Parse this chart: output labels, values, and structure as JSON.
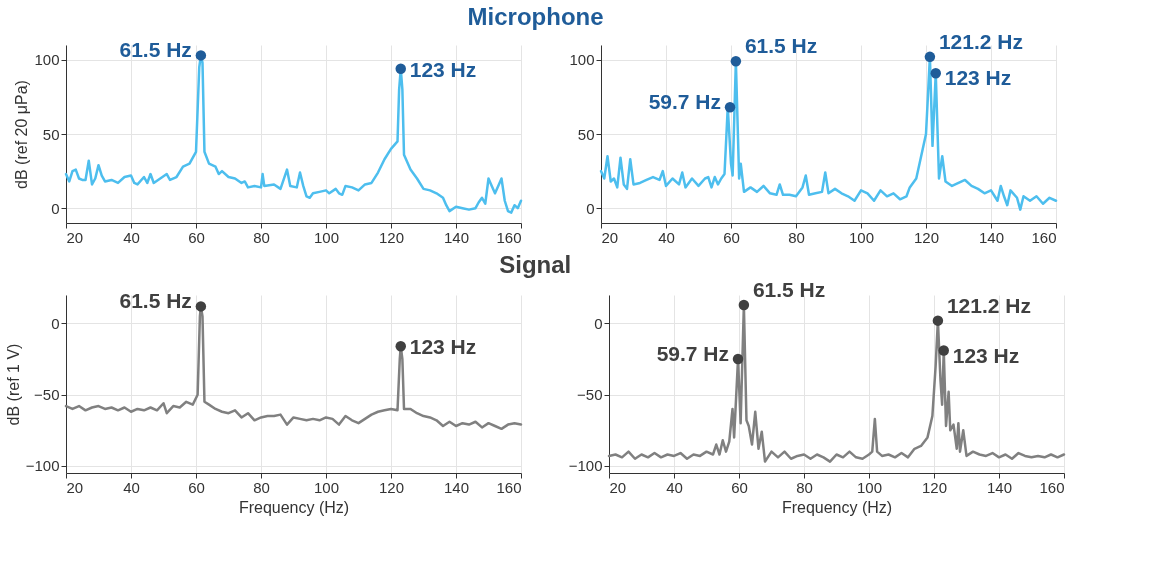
{
  "chart_data": [
    {
      "type": "line",
      "title": "Microphone",
      "ylabel": "dB (ref 20 μPa)",
      "xlim": [
        20,
        160
      ],
      "xticks": [
        20,
        40,
        60,
        80,
        100,
        120,
        140,
        160
      ],
      "ylim": [
        -10,
        110
      ],
      "yticks": [
        0,
        50,
        100
      ],
      "grid": true,
      "marker": "circle",
      "line_style": "solid",
      "series": [
        {
          "marker": "none",
          "color": "#4dbeee",
          "x": [
            20,
            21,
            22,
            23,
            24,
            25,
            26,
            27,
            28,
            29,
            30,
            31,
            32,
            34,
            36,
            38,
            40,
            41,
            42,
            44,
            45,
            46,
            47,
            49,
            51,
            52,
            54,
            56,
            58,
            60,
            61,
            61.5,
            62,
            62.6,
            64,
            66,
            67,
            68,
            70,
            72,
            74,
            75,
            76,
            78,
            80,
            80.5,
            81,
            84,
            86,
            88,
            89,
            91,
            92,
            93,
            94,
            95,
            96,
            98,
            100,
            101,
            103,
            104,
            105,
            106,
            108,
            110,
            112,
            114,
            116,
            118,
            120,
            122,
            122.5,
            123,
            123.5,
            124,
            126,
            128,
            130,
            132,
            134,
            136,
            137,
            138,
            140,
            142,
            144,
            146,
            147,
            148,
            149,
            150,
            151,
            152,
            153,
            154,
            155,
            156,
            157,
            158,
            159,
            160
          ],
          "values": [
            23,
            18,
            25,
            26,
            20,
            19,
            19,
            32,
            16,
            20,
            29,
            22,
            18,
            19,
            17,
            21,
            22,
            17,
            16,
            21,
            17,
            23,
            17,
            20,
            23,
            19,
            21,
            28,
            30,
            38,
            95,
            103,
            98,
            38,
            30,
            28,
            23,
            25,
            21,
            20,
            17,
            18,
            14,
            15,
            14,
            23,
            15,
            16,
            13,
            26,
            15,
            14,
            24,
            15,
            8,
            7,
            10,
            11,
            12,
            10,
            13,
            10,
            9,
            15,
            14,
            12,
            16,
            17,
            24,
            33,
            40,
            45,
            80,
            94,
            80,
            36,
            26,
            20,
            13,
            12,
            10,
            7,
            2,
            -2,
            1,
            0,
            -1,
            0,
            4,
            7,
            3,
            20,
            15,
            10,
            15,
            20,
            5,
            -2,
            -3,
            2,
            0,
            5
          ]
        },
        {
          "type": "scatter",
          "color": "#1f5c99",
          "x": [
            61.5,
            123
          ],
          "values": [
            103,
            94
          ]
        }
      ],
      "annotations": [
        {
          "text": "61.5 Hz",
          "x": 61.5,
          "y": 103
        },
        {
          "text": "123 Hz",
          "x": 123,
          "y": 94
        }
      ]
    },
    {
      "type": "line",
      "xlim": [
        20,
        160
      ],
      "xticks": [
        20,
        40,
        60,
        80,
        100,
        120,
        140,
        160
      ],
      "ylim": [
        -10,
        110
      ],
      "yticks": [
        0,
        50,
        100
      ],
      "grid": true,
      "marker": "circle",
      "line_style": "solid",
      "series": [
        {
          "marker": "none",
          "color": "#4dbeee",
          "x": [
            20,
            21,
            22,
            23,
            24,
            25,
            26,
            27,
            28,
            29,
            30,
            32,
            34,
            36,
            38,
            39,
            40,
            42,
            44,
            45,
            46,
            48,
            50,
            52,
            53,
            54,
            55,
            56,
            57,
            58,
            59,
            60,
            60.5,
            61.5,
            62.5,
            63,
            64,
            66,
            68,
            70,
            72,
            74,
            75,
            76,
            78,
            80,
            82,
            83,
            84,
            86,
            88,
            89,
            90,
            92,
            94,
            96,
            98,
            100,
            102,
            104,
            106,
            108,
            110,
            112,
            114,
            115,
            117,
            118,
            120,
            121.2,
            122,
            123,
            124,
            125,
            126,
            128,
            130,
            132,
            134,
            136,
            138,
            140,
            142,
            143,
            144,
            145,
            146,
            148,
            149,
            150,
            152,
            154,
            156,
            158,
            160
          ],
          "values": [
            25,
            20,
            35,
            18,
            20,
            14,
            34,
            16,
            13,
            33,
            16,
            17,
            19,
            21,
            19,
            25,
            15,
            20,
            16,
            24,
            14,
            20,
            15,
            20,
            21,
            14,
            21,
            16,
            20,
            23,
            68,
            30,
            22,
            99,
            20,
            30,
            11,
            14,
            11,
            15,
            10,
            9,
            16,
            9,
            9,
            8,
            14,
            22,
            9,
            10,
            11,
            24,
            10,
            13,
            10,
            8,
            5,
            12,
            10,
            5,
            12,
            8,
            10,
            6,
            8,
            14,
            20,
            30,
            50,
            102,
            42,
            91,
            20,
            35,
            18,
            15,
            17,
            19,
            15,
            13,
            10,
            12,
            5,
            15,
            8,
            2,
            12,
            7,
            -1,
            8,
            5,
            8,
            3,
            7,
            5
          ]
        },
        {
          "type": "scatter",
          "color": "#1f5c99",
          "x": [
            59.7,
            61.5,
            121.2,
            123
          ],
          "values": [
            68,
            99,
            102,
            91
          ]
        }
      ],
      "annotations": [
        {
          "text": "59.7 Hz",
          "x": 59.7,
          "y": 68
        },
        {
          "text": "61.5 Hz",
          "x": 61.5,
          "y": 99
        },
        {
          "text": "121.2 Hz",
          "x": 121.2,
          "y": 102
        },
        {
          "text": "123 Hz",
          "x": 123,
          "y": 91
        }
      ]
    },
    {
      "type": "line",
      "title": "Signal",
      "xlabel": "Frequency (Hz)",
      "ylabel": "dB (ref 1 V)",
      "xlim": [
        20,
        160
      ],
      "xticks": [
        20,
        40,
        60,
        80,
        100,
        120,
        140,
        160
      ],
      "ylim": [
        -105,
        20
      ],
      "yticks": [
        -100,
        -50,
        0
      ],
      "grid": true,
      "marker": "circle",
      "line_style": "solid",
      "series": [
        {
          "marker": "none",
          "color": "#808080",
          "x": [
            20,
            22,
            24,
            26,
            28,
            30,
            32,
            34,
            36,
            38,
            40,
            42,
            44,
            46,
            48,
            50,
            51,
            53,
            55,
            57,
            59,
            60.5,
            61.2,
            61.5,
            62,
            62.6,
            64,
            66,
            68,
            70,
            72,
            74,
            76,
            78,
            80,
            82,
            84,
            86,
            88,
            90,
            92,
            94,
            96,
            98,
            100,
            102,
            104,
            106,
            108,
            110,
            112,
            114,
            116,
            118,
            120,
            122,
            122.7,
            123,
            123.5,
            124,
            126,
            128,
            130,
            132,
            134,
            136,
            138,
            140,
            142,
            144,
            146,
            148,
            150,
            152,
            154,
            156,
            158,
            160
          ],
          "values": [
            -58,
            -60,
            -58,
            -61,
            -59,
            -58,
            -60,
            -59,
            -61,
            -59,
            -62,
            -60,
            -61,
            -59,
            -61,
            -56,
            -63,
            -58,
            -59,
            -55,
            -57,
            -50,
            5,
            12,
            5,
            -55,
            -57,
            -60,
            -62,
            -63,
            -61,
            -66,
            -63,
            -68,
            -66,
            -65,
            -65,
            -64,
            -71,
            -66,
            -67,
            -68,
            -67,
            -68,
            -66,
            -67,
            -71,
            -65,
            -68,
            -70,
            -67,
            -64,
            -62,
            -61,
            -60,
            -61,
            -25,
            -16,
            -25,
            -60,
            -60,
            -63,
            -65,
            -66,
            -68,
            -72,
            -69,
            -72,
            -70,
            -71,
            -69,
            -73,
            -70,
            -72,
            -74,
            -71,
            -70,
            -71
          ]
        },
        {
          "type": "scatter",
          "color": "#404040",
          "x": [
            61.5,
            123
          ],
          "values": [
            12,
            -16
          ]
        }
      ],
      "annotations": [
        {
          "text": "61.5 Hz",
          "x": 61.5,
          "y": 12
        },
        {
          "text": "123 Hz",
          "x": 123,
          "y": -16
        }
      ]
    },
    {
      "type": "line",
      "xlabel": "Frequency (Hz)",
      "xlim": [
        20,
        160
      ],
      "xticks": [
        20,
        40,
        60,
        80,
        100,
        120,
        140,
        160
      ],
      "ylim": [
        -105,
        20
      ],
      "yticks": [
        -100,
        -50,
        0
      ],
      "grid": true,
      "marker": "circle",
      "line_style": "solid",
      "series": [
        {
          "marker": "none",
          "color": "#808080",
          "x": [
            20,
            22,
            24,
            26,
            28,
            30,
            32,
            34,
            36,
            38,
            40,
            42,
            44,
            46,
            48,
            50,
            52,
            53,
            54,
            55,
            56,
            57,
            58,
            58.5,
            59.7,
            60.5,
            61.5,
            62.3,
            63,
            64,
            65,
            66,
            67,
            68,
            70,
            72,
            74,
            76,
            78,
            80,
            82,
            84,
            86,
            88,
            90,
            92,
            94,
            96,
            98,
            100,
            101,
            101.8,
            102.5,
            104,
            106,
            108,
            110,
            112,
            114,
            116,
            118,
            119.5,
            120.5,
            121.2,
            122,
            122.5,
            123,
            123.7,
            124.5,
            125,
            126,
            127,
            127.5,
            128,
            129,
            130,
            132,
            134,
            136,
            138,
            140,
            142,
            144,
            146,
            148,
            150,
            152,
            154,
            156,
            158,
            160
          ],
          "values": [
            -93,
            -92,
            -94,
            -90,
            -95,
            -92,
            -94,
            -91,
            -94,
            -92,
            -93,
            -91,
            -95,
            -92,
            -93,
            -90,
            -92,
            -85,
            -92,
            -82,
            -90,
            -83,
            -60,
            -80,
            -25,
            -70,
            13,
            -68,
            -72,
            -85,
            -62,
            -88,
            -76,
            -97,
            -90,
            -94,
            -90,
            -95,
            -93,
            -92,
            -95,
            -92,
            -94,
            -97,
            -92,
            -94,
            -90,
            -94,
            -95,
            -92,
            -90,
            -67,
            -90,
            -93,
            -92,
            -94,
            -91,
            -94,
            -88,
            -86,
            -80,
            -65,
            -30,
            2,
            -40,
            -57,
            -19,
            -72,
            -48,
            -75,
            -71,
            -88,
            -70,
            -90,
            -75,
            -93,
            -90,
            -92,
            -93,
            -91,
            -94,
            -92,
            -95,
            -91,
            -93,
            -94,
            -93,
            -94,
            -92,
            -94,
            -92
          ]
        },
        {
          "type": "scatter",
          "color": "#404040",
          "x": [
            59.7,
            61.5,
            121.2,
            123
          ],
          "values": [
            -25,
            13,
            2,
            -19
          ]
        }
      ],
      "annotations": [
        {
          "text": "59.7 Hz",
          "x": 59.7,
          "y": -25
        },
        {
          "text": "61.5 Hz",
          "x": 61.5,
          "y": 13
        },
        {
          "text": "121.2 Hz",
          "x": 121.2,
          "y": 2
        },
        {
          "text": "123 Hz",
          "x": 123,
          "y": -19
        }
      ]
    }
  ]
}
